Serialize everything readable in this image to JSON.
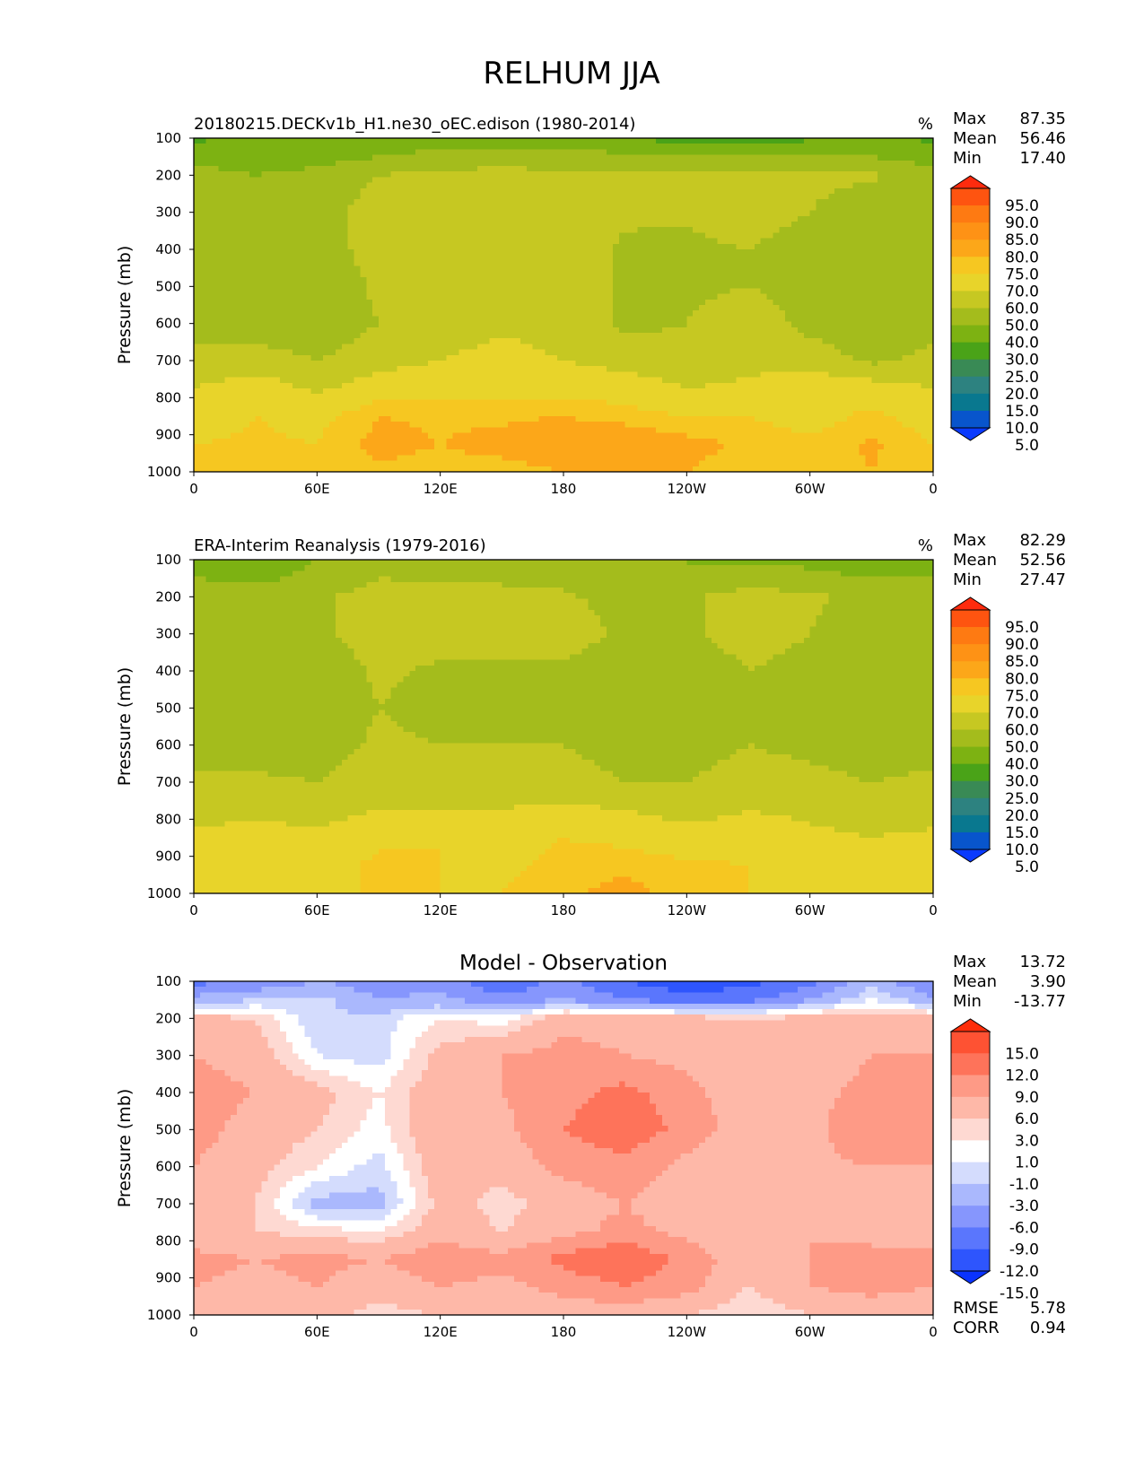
{
  "figure": {
    "title": "RELHUM JJA"
  },
  "chart_data": [
    {
      "type": "heatmap",
      "panel": "test",
      "title": "20180215.DECKv1b_H1.ne30_oEC.edison (1980-2014)",
      "units": "%",
      "xlabel": "",
      "ylabel": "Pressure (mb)",
      "x_ticks": [
        "0",
        "60E",
        "120E",
        "180",
        "120W",
        "60W",
        "0"
      ],
      "y_ticks": [
        "100",
        "200",
        "300",
        "400",
        "500",
        "600",
        "700",
        "800",
        "900",
        "1000"
      ],
      "xlim": [
        0,
        360
      ],
      "ylim": [
        1000,
        100
      ],
      "stats": [
        {
          "label": "Max",
          "value": "87.35"
        },
        {
          "label": "Mean",
          "value": "56.46"
        },
        {
          "label": "Min",
          "value": "17.40"
        }
      ],
      "colorbar": {
        "levels": [
          "95.0",
          "90.0",
          "85.0",
          "80.0",
          "75.0",
          "70.0",
          "60.0",
          "50.0",
          "40.0",
          "30.0",
          "25.0",
          "20.0",
          "15.0",
          "10.0",
          "5.0"
        ],
        "colors": [
          "#fe2b0e",
          "#fe5410",
          "#fe7a12",
          "#fe9215",
          "#fca719",
          "#f6c721",
          "#e8d42a",
          "#c6c822",
          "#a4bc1c",
          "#7db212",
          "#4aa318",
          "#398a55",
          "#2d8280",
          "#09788f",
          "#0855cc",
          "#0a3afe"
        ]
      },
      "x": [
        0,
        30,
        60,
        90,
        120,
        150,
        180,
        210,
        240,
        270,
        300,
        330,
        360
      ],
      "y": [
        100,
        150,
        200,
        300,
        400,
        500,
        600,
        700,
        775,
        850,
        925,
        1000
      ],
      "z": [
        [
          28,
          33,
          34,
          32,
          31,
          33,
          33,
          30,
          26,
          24,
          28,
          32,
          28
        ],
        [
          35,
          33,
          36,
          40,
          45,
          47,
          45,
          42,
          40,
          42,
          43,
          40,
          35
        ],
        [
          45,
          40,
          43,
          50,
          52,
          52,
          52,
          51,
          51,
          52,
          52,
          51,
          45
        ],
        [
          50,
          42,
          45,
          55,
          57,
          58,
          56,
          52,
          51,
          55,
          50,
          45,
          50
        ],
        [
          45,
          42,
          44,
          55,
          58,
          59,
          57,
          48,
          48,
          50,
          45,
          45,
          45
        ],
        [
          43,
          44,
          42,
          52,
          58,
          60,
          58,
          48,
          48,
          50,
          46,
          44,
          43
        ],
        [
          46,
          45,
          43,
          50,
          57,
          59,
          58,
          48,
          50,
          56,
          47,
          45,
          46
        ],
        [
          53,
          54,
          50,
          56,
          60,
          62,
          60,
          56,
          52,
          57,
          55,
          48,
          53
        ],
        [
          60,
          66,
          58,
          66,
          68,
          68,
          67,
          66,
          60,
          62,
          68,
          65,
          60
        ],
        [
          66,
          70,
          68,
          75,
          74,
          74,
          75,
          73,
          70,
          70,
          66,
          72,
          66
        ],
        [
          70,
          71,
          70,
          77,
          75,
          77,
          79,
          80,
          77,
          74,
          72,
          76,
          70
        ],
        [
          72,
          70,
          71,
          74,
          73,
          73,
          75,
          76,
          75,
          72,
          70,
          75,
          72
        ]
      ]
    },
    {
      "type": "heatmap",
      "panel": "reference",
      "title": "ERA-Interim Reanalysis (1979-2016)",
      "units": "%",
      "xlabel": "",
      "ylabel": "Pressure (mb)",
      "x_ticks": [
        "0",
        "60E",
        "120E",
        "180",
        "120W",
        "60W",
        "0"
      ],
      "y_ticks": [
        "100",
        "200",
        "300",
        "400",
        "500",
        "600",
        "700",
        "800",
        "900",
        "1000"
      ],
      "xlim": [
        0,
        360
      ],
      "ylim": [
        1000,
        100
      ],
      "stats": [
        {
          "label": "Max",
          "value": "82.29"
        },
        {
          "label": "Mean",
          "value": "52.56"
        },
        {
          "label": "Min",
          "value": "27.47"
        }
      ],
      "colorbar": {
        "levels": [
          "95.0",
          "90.0",
          "85.0",
          "80.0",
          "75.0",
          "70.0",
          "60.0",
          "50.0",
          "40.0",
          "30.0",
          "25.0",
          "20.0",
          "15.0",
          "10.0",
          "5.0"
        ],
        "colors": [
          "#fe2b0e",
          "#fe5410",
          "#fe7a12",
          "#fe9215",
          "#fca719",
          "#f6c721",
          "#e8d42a",
          "#c6c822",
          "#a4bc1c",
          "#7db212",
          "#4aa318",
          "#398a55",
          "#2d8280",
          "#09788f",
          "#0855cc",
          "#0a3afe"
        ]
      },
      "x": [
        0,
        30,
        60,
        90,
        120,
        150,
        180,
        210,
        240,
        270,
        300,
        330,
        360
      ],
      "y": [
        100,
        150,
        200,
        300,
        400,
        500,
        600,
        700,
        775,
        850,
        925,
        1000
      ],
      "z": [
        [
          38,
          36,
          40,
          48,
          48,
          47,
          45,
          42,
          40,
          38,
          38,
          36,
          38
        ],
        [
          40,
          38,
          42,
          50,
          49,
          48,
          46,
          42,
          40,
          45,
          42,
          40,
          40
        ],
        [
          48,
          45,
          48,
          55,
          52,
          54,
          52,
          45,
          48,
          55,
          52,
          46,
          48
        ],
        [
          45,
          42,
          48,
          55,
          55,
          56,
          56,
          48,
          48,
          55,
          50,
          44,
          45
        ],
        [
          42,
          40,
          42,
          52,
          48,
          48,
          48,
          40,
          42,
          50,
          46,
          40,
          42
        ],
        [
          43,
          40,
          42,
          50,
          46,
          46,
          47,
          40,
          42,
          48,
          46,
          42,
          43
        ],
        [
          46,
          44,
          45,
          52,
          50,
          50,
          50,
          45,
          46,
          50,
          48,
          46,
          46
        ],
        [
          52,
          52,
          50,
          56,
          54,
          56,
          55,
          50,
          50,
          54,
          52,
          50,
          52
        ],
        [
          56,
          58,
          56,
          60,
          60,
          60,
          62,
          60,
          56,
          60,
          58,
          56,
          56
        ],
        [
          62,
          64,
          62,
          68,
          70,
          68,
          70,
          68,
          64,
          65,
          62,
          60,
          62
        ],
        [
          64,
          66,
          66,
          72,
          70,
          68,
          72,
          74,
          72,
          70,
          66,
          65,
          64
        ],
        [
          66,
          65,
          66,
          72,
          70,
          70,
          74,
          77,
          72,
          70,
          68,
          66,
          66
        ]
      ]
    },
    {
      "type": "heatmap",
      "panel": "difference",
      "title": "Model - Observation",
      "units": "",
      "xlabel": "",
      "ylabel": "Pressure (mb)",
      "x_ticks": [
        "0",
        "60E",
        "120E",
        "180",
        "120W",
        "60W",
        "0"
      ],
      "y_ticks": [
        "100",
        "200",
        "300",
        "400",
        "500",
        "600",
        "700",
        "800",
        "900",
        "1000"
      ],
      "xlim": [
        0,
        360
      ],
      "ylim": [
        1000,
        100
      ],
      "stats": [
        {
          "label": "Max",
          "value": "13.72"
        },
        {
          "label": "Mean",
          "value": "3.90"
        },
        {
          "label": "Min",
          "value": "-13.77"
        }
      ],
      "extra_stats": [
        {
          "label": "RMSE",
          "value": "5.78"
        },
        {
          "label": "CORR",
          "value": "0.94"
        }
      ],
      "colorbar": {
        "levels": [
          "15.0",
          "12.0",
          "9.0",
          "6.0",
          "3.0",
          "1.0",
          "-1.0",
          "-3.0",
          "-6.0",
          "-9.0",
          "-12.0",
          "-15.0"
        ],
        "colors": [
          "#fe2e0a",
          "#fe5233",
          "#fe735a",
          "#fe9a86",
          "#feb8a8",
          "#fed9d2",
          "#ffffff",
          "#d4dcfd",
          "#aab8fd",
          "#8696fd",
          "#5a76fd",
          "#2e55fd",
          "#0a33fe"
        ]
      },
      "x": [
        0,
        30,
        60,
        90,
        120,
        150,
        180,
        210,
        240,
        270,
        300,
        330,
        360
      ],
      "y": [
        100,
        150,
        200,
        300,
        400,
        500,
        600,
        700,
        775,
        850,
        925,
        1000
      ],
      "z": [
        [
          -10,
          -9,
          -6,
          -8,
          -7,
          -12,
          -8,
          -12,
          -14,
          -13,
          -10,
          -4,
          -10
        ],
        [
          -5,
          -3,
          -2,
          -6,
          -5,
          -8,
          -6,
          -9,
          -11,
          -10,
          -6,
          -1,
          -5
        ],
        [
          4,
          3,
          -3,
          -2,
          1,
          0,
          5,
          5,
          4,
          3,
          4,
          5,
          4
        ],
        [
          6,
          5,
          -1,
          -2,
          4,
          6,
          7,
          6,
          5,
          3,
          4,
          6,
          6
        ],
        [
          7,
          6,
          4,
          1,
          5,
          6,
          8,
          10,
          7,
          4,
          5,
          7,
          7
        ],
        [
          7,
          5,
          3,
          0,
          6,
          5,
          9,
          11,
          8,
          4,
          5,
          9,
          7
        ],
        [
          6,
          4,
          1,
          -2,
          5,
          4,
          7,
          8,
          5,
          3,
          5,
          6,
          6
        ],
        [
          5,
          3,
          -4,
          -4,
          4,
          2,
          4,
          6,
          4,
          3,
          4,
          5,
          5
        ],
        [
          4,
          3,
          2,
          1,
          5,
          3,
          5,
          7,
          5,
          3,
          6,
          4,
          4
        ],
        [
          7,
          6,
          7,
          6,
          8,
          7,
          10,
          12,
          8,
          4,
          6,
          8,
          7
        ],
        [
          6,
          5,
          6,
          4,
          6,
          5,
          7,
          9,
          7,
          3,
          6,
          7,
          6
        ],
        [
          3,
          3,
          4,
          2,
          3,
          3,
          4,
          4,
          3,
          1,
          3,
          4,
          3
        ]
      ]
    }
  ]
}
